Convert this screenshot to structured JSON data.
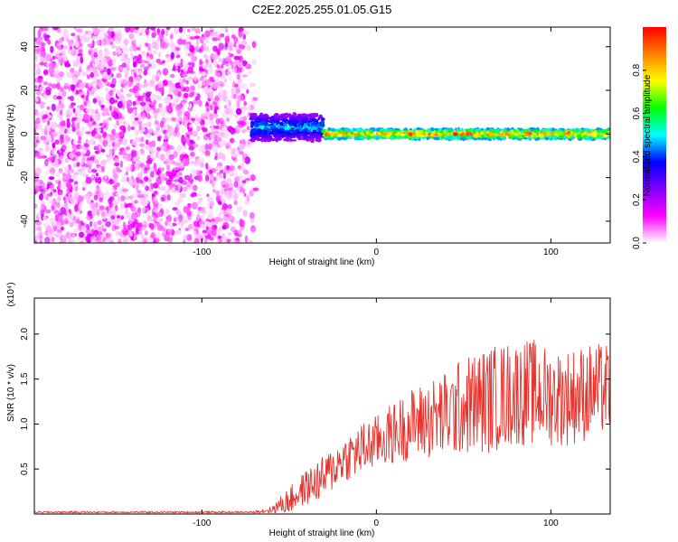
{
  "title": "C2E2.2025.255.01.05.G15",
  "chart_data": [
    {
      "type": "heatmap",
      "xlabel": "Height of straight line (km)",
      "ylabel": "Frequency (Hz)",
      "xlim": [
        -196,
        134
      ],
      "ylim": [
        -50,
        49
      ],
      "xticks": [
        -100,
        0,
        100
      ],
      "yticks": [
        -40,
        -20,
        0,
        20,
        40
      ],
      "colorbar": {
        "label": "Normalized spectral amplitude",
        "range": [
          0,
          1
        ],
        "ticks": [
          "0.0",
          "0.2",
          "0.4",
          "0.6",
          "0.8"
        ],
        "colors": [
          "#ffffff",
          "#ff00ff",
          "#8000ff",
          "#0000ff",
          "#00ffff",
          "#00ff00",
          "#ffff00",
          "#ff8000",
          "#ff0000"
        ]
      },
      "regions": [
        {
          "name": "noise",
          "x": [
            -196,
            -68
          ],
          "freq_range": [
            -50,
            49
          ],
          "amplitude": [
            0.02,
            0.18
          ]
        },
        {
          "name": "onset",
          "x": [
            -72,
            -30
          ],
          "freq_center": 3,
          "freq_width": 12,
          "amplitude": [
            0.2,
            0.55
          ]
        },
        {
          "name": "signal",
          "x": [
            -30,
            134
          ],
          "freq_center": 0,
          "freq_width": 4,
          "amplitude": [
            0.45,
            1.0
          ]
        }
      ]
    },
    {
      "type": "line",
      "xlabel": "Height of straight line (km)",
      "ylabel": "SNR (10 * v/v)",
      "y_scale_label": "(x10⁴)",
      "xlim": [
        -196,
        134
      ],
      "ylim": [
        0,
        2.4
      ],
      "xticks": [
        -100,
        0,
        100
      ],
      "yticks": [
        "0.5",
        "1.0",
        "1.5",
        "2.0"
      ],
      "series": [
        {
          "color": "#e8322c",
          "envelope": {
            "x": [
              -196,
              -70,
              -60,
              -50,
              -40,
              -30,
              -20,
              -10,
              0,
              10,
              20,
              30,
              40,
              50,
              60,
              70,
              80,
              90,
              100,
              110,
              120,
              134
            ],
            "mean": [
              0.02,
              0.02,
              0.05,
              0.15,
              0.3,
              0.4,
              0.6,
              0.7,
              0.8,
              0.9,
              1.0,
              1.05,
              1.1,
              1.2,
              1.25,
              1.3,
              1.35,
              1.35,
              1.3,
              1.3,
              1.35,
              1.4
            ],
            "spread": [
              0.01,
              0.01,
              0.05,
              0.15,
              0.2,
              0.25,
              0.25,
              0.3,
              0.3,
              0.35,
              0.4,
              0.45,
              0.5,
              0.55,
              0.6,
              0.6,
              0.6,
              0.6,
              0.55,
              0.55,
              0.55,
              0.5
            ]
          }
        }
      ]
    }
  ]
}
